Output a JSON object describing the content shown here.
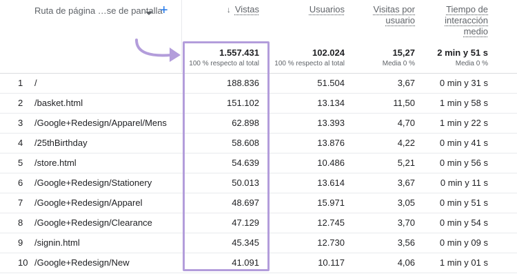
{
  "header": {
    "dimension_label": "Ruta de página …se de pantalla",
    "add_icon": "+",
    "columns": {
      "vistas": "Vistas",
      "vistas_sort_icon": "↓",
      "usuarios": "Usuarios",
      "visitas_por_usuario_line1": "Visitas por",
      "visitas_por_usuario_line2": "usuario",
      "tiempo_line1": "Tiempo de",
      "tiempo_line2": "interacción",
      "tiempo_line3": "medio"
    }
  },
  "totals": {
    "vistas": "1.557.431",
    "vistas_sub": "100 % respecto al total",
    "usuarios": "102.024",
    "usuarios_sub": "100 % respecto al total",
    "visitas_por_usuario": "15,27",
    "visitas_por_usuario_sub": "Media 0 %",
    "tiempo": "2 min y 51 s",
    "tiempo_sub": "Media 0 %"
  },
  "rows": [
    {
      "idx": "1",
      "path": "/",
      "vistas": "188.836",
      "usuarios": "51.504",
      "vpu": "3,67",
      "tiempo": "0 min y 31 s"
    },
    {
      "idx": "2",
      "path": "/basket.html",
      "vistas": "151.102",
      "usuarios": "13.134",
      "vpu": "11,50",
      "tiempo": "1 min y 58 s"
    },
    {
      "idx": "3",
      "path": "/Google+Redesign/Apparel/Mens",
      "vistas": "62.898",
      "usuarios": "13.393",
      "vpu": "4,70",
      "tiempo": "1 min y 22 s"
    },
    {
      "idx": "4",
      "path": "/25thBirthday",
      "vistas": "58.608",
      "usuarios": "13.876",
      "vpu": "4,22",
      "tiempo": "0 min y 41 s"
    },
    {
      "idx": "5",
      "path": "/store.html",
      "vistas": "54.639",
      "usuarios": "10.486",
      "vpu": "5,21",
      "tiempo": "0 min y 56 s"
    },
    {
      "idx": "6",
      "path": "/Google+Redesign/Stationery",
      "vistas": "50.013",
      "usuarios": "13.614",
      "vpu": "3,67",
      "tiempo": "0 min y 11 s"
    },
    {
      "idx": "7",
      "path": "/Google+Redesign/Apparel",
      "vistas": "48.697",
      "usuarios": "15.971",
      "vpu": "3,05",
      "tiempo": "0 min y 51 s"
    },
    {
      "idx": "8",
      "path": "/Google+Redesign/Clearance",
      "vistas": "47.129",
      "usuarios": "12.745",
      "vpu": "3,70",
      "tiempo": "0 min y 54 s"
    },
    {
      "idx": "9",
      "path": "/signin.html",
      "vistas": "45.345",
      "usuarios": "12.730",
      "vpu": "3,56",
      "tiempo": "0 min y 09 s"
    },
    {
      "idx": "10",
      "path": "/Google+Redesign/New",
      "vistas": "41.091",
      "usuarios": "10.117",
      "vpu": "4,06",
      "tiempo": "1 min y 01 s"
    }
  ],
  "colors": {
    "highlight": "#b39ddb",
    "accent": "#1a73e8"
  }
}
